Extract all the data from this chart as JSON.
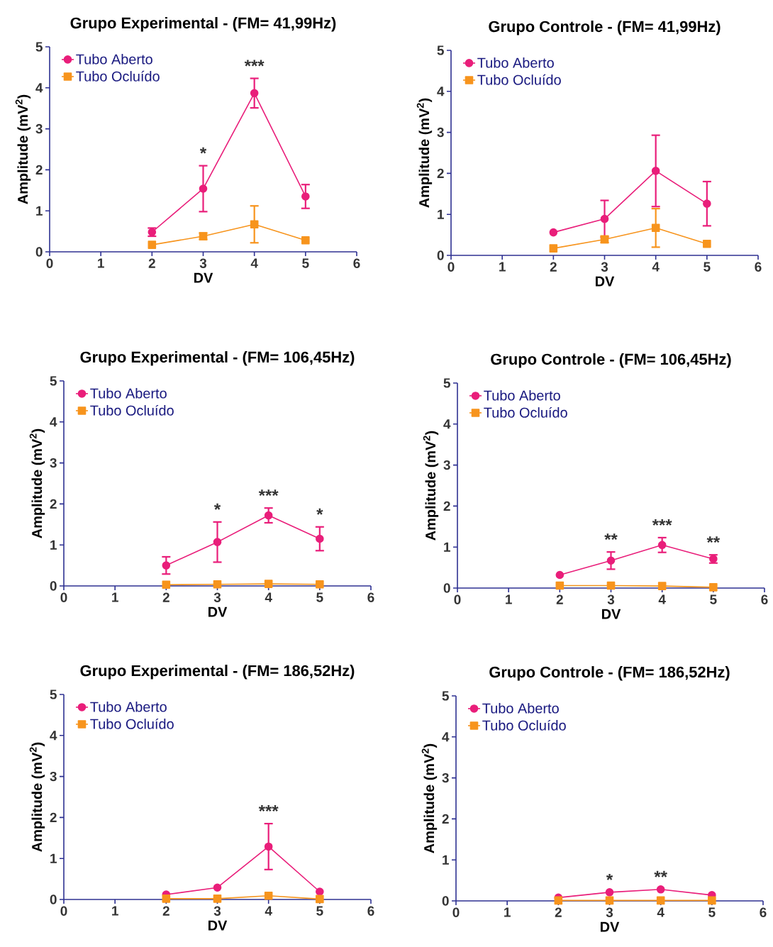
{
  "chart_data": [
    {
      "type": "line",
      "title": "Grupo Experimental - (FM= 41,99Hz)",
      "xlabel": "DV",
      "ylabel": "Amplitude (mV$^{2}$)",
      "x": [
        2,
        3,
        4,
        5
      ],
      "xlim": [
        0,
        6
      ],
      "ylim": [
        0,
        5
      ],
      "xticks": [
        0,
        1,
        2,
        3,
        4,
        5,
        6
      ],
      "yticks": [
        0,
        1,
        2,
        3,
        4,
        5
      ],
      "legend": "top left",
      "series": [
        {
          "name": "Tubo Aberto",
          "color": "#e91e7a",
          "marker": "circle",
          "values": [
            0.48,
            1.54,
            3.87,
            1.35
          ],
          "errors": [
            0.1,
            0.56,
            0.36,
            0.29
          ]
        },
        {
          "name": "Tubo Ocluído",
          "color": "#f7941d",
          "marker": "square",
          "values": [
            0.17,
            0.38,
            0.67,
            0.28
          ],
          "errors": [
            null,
            0.08,
            0.45,
            null
          ]
        }
      ],
      "annotations": [
        {
          "text": "*",
          "x": 3,
          "y": 1.54
        },
        {
          "text": "***",
          "x": 4,
          "y": 3.87
        }
      ]
    },
    {
      "type": "line",
      "title": "Grupo Controle - (FM= 41,99Hz)",
      "xlabel": "DV",
      "ylabel": "Amplitude (mV$^{2}$)",
      "x": [
        2,
        3,
        4,
        5
      ],
      "xlim": [
        0,
        6
      ],
      "ylim": [
        0,
        5
      ],
      "xticks": [
        0,
        1,
        2,
        3,
        4,
        5,
        6
      ],
      "yticks": [
        0,
        1,
        2,
        3,
        4,
        5
      ],
      "legend": "top left",
      "series": [
        {
          "name": "Tubo Aberto",
          "color": "#e91e7a",
          "marker": "circle",
          "values": [
            0.56,
            0.89,
            2.06,
            1.26
          ],
          "errors": [
            null,
            0.45,
            0.87,
            0.54
          ]
        },
        {
          "name": "Tubo Ocluído",
          "color": "#f7941d",
          "marker": "square",
          "values": [
            0.17,
            0.39,
            0.67,
            0.28
          ],
          "errors": [
            null,
            0.08,
            0.47,
            null
          ]
        }
      ]
    },
    {
      "type": "line",
      "title": "Grupo Experimental - (FM= 106,45Hz)",
      "xlabel": "DV",
      "ylabel": "Amplitude (mV$^{2}$)",
      "x": [
        2,
        3,
        4,
        5
      ],
      "xlim": [
        0,
        6
      ],
      "ylim": [
        0,
        5
      ],
      "xticks": [
        0,
        1,
        2,
        3,
        4,
        5,
        6
      ],
      "yticks": [
        0,
        1,
        2,
        3,
        4,
        5
      ],
      "legend": "top left",
      "series": [
        {
          "name": "Tubo Aberto",
          "color": "#e91e7a",
          "marker": "circle",
          "values": [
            0.5,
            1.07,
            1.72,
            1.15
          ],
          "errors": [
            0.21,
            0.49,
            0.18,
            0.29
          ]
        },
        {
          "name": "Tubo Ocluído",
          "color": "#f7941d",
          "marker": "square",
          "values": [
            0.03,
            0.04,
            0.05,
            0.04
          ]
        }
      ],
      "annotations": [
        {
          "text": "*",
          "x": 3,
          "y": 1.07
        },
        {
          "text": "***",
          "x": 4,
          "y": 1.72
        },
        {
          "text": "*",
          "x": 5,
          "y": 1.15
        }
      ]
    },
    {
      "type": "line",
      "title": "Grupo Controle - (FM= 106,45Hz)",
      "xlabel": "DV",
      "ylabel": "Amplitude (mV$^{2}$)",
      "x": [
        2,
        3,
        4,
        5
      ],
      "xlim": [
        0,
        6
      ],
      "ylim": [
        0,
        5
      ],
      "xticks": [
        0,
        1,
        2,
        3,
        4,
        5,
        6
      ],
      "yticks": [
        0,
        1,
        2,
        3,
        4,
        5
      ],
      "legend": "top left",
      "series": [
        {
          "name": "Tubo Aberto",
          "color": "#e91e7a",
          "marker": "circle",
          "values": [
            0.32,
            0.67,
            1.05,
            0.71
          ],
          "errors": [
            null,
            0.21,
            0.18,
            0.1
          ]
        },
        {
          "name": "Tubo Ocluído",
          "color": "#f7941d",
          "marker": "square",
          "values": [
            0.06,
            0.06,
            0.05,
            0.02
          ]
        }
      ],
      "annotations": [
        {
          "text": "**",
          "x": 3,
          "y": 0.67
        },
        {
          "text": "***",
          "x": 4,
          "y": 1.05
        },
        {
          "text": "**",
          "x": 5,
          "y": 0.71
        }
      ]
    },
    {
      "type": "line",
      "title": "Grupo Experimental - (FM= 186,52Hz)",
      "xlabel": "DV",
      "ylabel": "Amplitude (mV$^{2}$)",
      "x": [
        2,
        3,
        4,
        5
      ],
      "xlim": [
        0,
        6
      ],
      "ylim": [
        0,
        5
      ],
      "xticks": [
        0,
        1,
        2,
        3,
        4,
        5,
        6
      ],
      "yticks": [
        0,
        1,
        2,
        3,
        4,
        5
      ],
      "legend": "top left",
      "series": [
        {
          "name": "Tubo Aberto",
          "color": "#e91e7a",
          "marker": "circle",
          "values": [
            0.12,
            0.29,
            1.29,
            0.19
          ],
          "errors": [
            null,
            null,
            0.56,
            null
          ]
        },
        {
          "name": "Tubo Ocluído",
          "color": "#f7941d",
          "marker": "square",
          "values": [
            0.02,
            0.02,
            0.09,
            0.01
          ]
        }
      ],
      "annotations": [
        {
          "text": "***",
          "x": 4,
          "y": 1.29
        }
      ]
    },
    {
      "type": "line",
      "title": "Grupo Controle - (FM= 186,52Hz)",
      "xlabel": "DV",
      "ylabel": "Amplitude (mV$^{2}$)",
      "x": [
        2,
        3,
        4,
        5
      ],
      "xlim": [
        0,
        6
      ],
      "ylim": [
        0,
        5
      ],
      "xticks": [
        0,
        1,
        2,
        3,
        4,
        5,
        6
      ],
      "yticks": [
        0,
        1,
        2,
        3,
        4,
        5
      ],
      "legend": "top left",
      "series": [
        {
          "name": "Tubo Aberto",
          "color": "#e91e7a",
          "marker": "circle",
          "values": [
            0.08,
            0.21,
            0.28,
            0.14
          ]
        },
        {
          "name": "Tubo Ocluído",
          "color": "#f7941d",
          "marker": "square",
          "values": [
            0.01,
            0.01,
            0.01,
            0.01
          ]
        }
      ],
      "annotations": [
        {
          "text": "*",
          "x": 3,
          "y": 0.21
        },
        {
          "text": "**",
          "x": 4,
          "y": 0.28
        }
      ]
    }
  ]
}
